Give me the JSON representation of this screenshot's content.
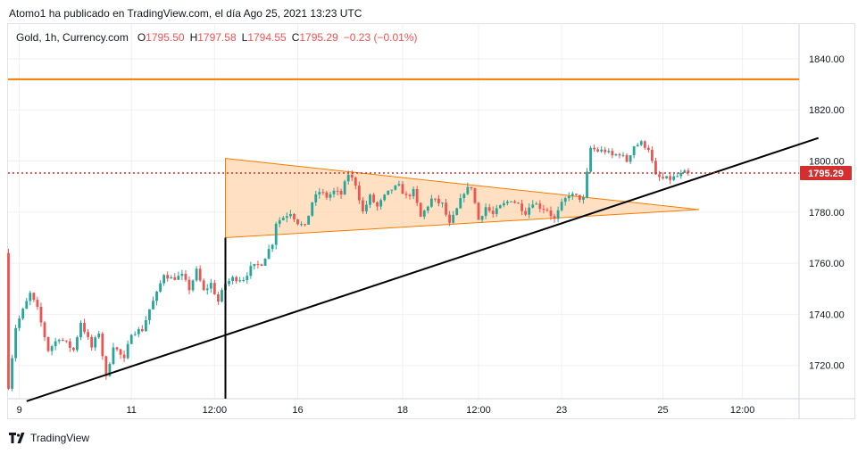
{
  "published_line": "Atomo1 ha publicado en TradingView.com, el día Ago 25, 2021 13:23 UTC",
  "legend": {
    "symbol": "Gold, 1h, Currency.com",
    "open_label": "O",
    "open": "1795.50",
    "high_label": "H",
    "high": "1797.58",
    "low_label": "L",
    "low": "1794.55",
    "close_label": "C",
    "close": "1795.29",
    "change": "−0.23 (−0.01%)"
  },
  "brand": "TradingView",
  "colors": {
    "up": "#26a69a",
    "down": "#ef5350",
    "resistance": "#f57c00",
    "triangle_fill": "#ffcc99",
    "triangle_stroke": "#f57c00",
    "trendline": "#000000",
    "price_line": "#d32f2f",
    "grid": "#eef0f3"
  },
  "chart_data": {
    "type": "candlestick",
    "instrument": "Gold",
    "timeframe": "1h",
    "y_axis": {
      "ticks": [
        1720,
        1740,
        1760,
        1780,
        1800,
        1820,
        1840
      ],
      "tick_labels": [
        "1720.00",
        "1740.00",
        "1760.00",
        "1780.00",
        "1800.00",
        "1820.00",
        "1840.00"
      ],
      "range": [
        1705,
        1850
      ]
    },
    "x_axis": {
      "tick_labels": [
        "9",
        "11",
        "12:00",
        "16",
        "18",
        "12:00",
        "23",
        "25",
        "12:00"
      ],
      "tick_bars": [
        3,
        34,
        57,
        80,
        109,
        130,
        153,
        181,
        203
      ]
    },
    "last_price": 1795.29,
    "last_price_label": "1795.29",
    "resistance_level": 1832,
    "price_path": [
      [
        0,
        1764
      ],
      [
        1,
        1712
      ],
      [
        3,
        1735
      ],
      [
        7,
        1748
      ],
      [
        9,
        1742
      ],
      [
        12,
        1726
      ],
      [
        15,
        1731
      ],
      [
        19,
        1726
      ],
      [
        21,
        1737
      ],
      [
        24,
        1727
      ],
      [
        26,
        1733
      ],
      [
        28,
        1715
      ],
      [
        30,
        1728
      ],
      [
        33,
        1722
      ],
      [
        35,
        1733
      ],
      [
        38,
        1734
      ],
      [
        40,
        1742
      ],
      [
        42,
        1748
      ],
      [
        44,
        1756
      ],
      [
        46,
        1754
      ],
      [
        49,
        1755
      ],
      [
        51,
        1750
      ],
      [
        53,
        1757
      ],
      [
        55,
        1749
      ],
      [
        57,
        1752
      ],
      [
        59,
        1745
      ],
      [
        61,
        1752
      ],
      [
        63,
        1754
      ],
      [
        66,
        1754
      ],
      [
        68,
        1758
      ],
      [
        71,
        1760
      ],
      [
        74,
        1768
      ],
      [
        75,
        1776
      ],
      [
        77,
        1778
      ],
      [
        79,
        1780
      ],
      [
        81,
        1776
      ],
      [
        83,
        1774
      ],
      [
        85,
        1784
      ],
      [
        87,
        1788
      ],
      [
        89,
        1786
      ],
      [
        91,
        1788
      ],
      [
        93,
        1787
      ],
      [
        95,
        1795
      ],
      [
        97,
        1791
      ],
      [
        99,
        1780
      ],
      [
        101,
        1786
      ],
      [
        103,
        1782
      ],
      [
        105,
        1786
      ],
      [
        107,
        1789
      ],
      [
        109,
        1790
      ],
      [
        111,
        1786
      ],
      [
        113,
        1788
      ],
      [
        115,
        1778
      ],
      [
        118,
        1785
      ],
      [
        121,
        1783
      ],
      [
        123,
        1775
      ],
      [
        125,
        1781
      ],
      [
        127,
        1788
      ],
      [
        129,
        1790
      ],
      [
        131,
        1777
      ],
      [
        133,
        1782
      ],
      [
        135,
        1779
      ],
      [
        137,
        1782
      ],
      [
        140,
        1785
      ],
      [
        142,
        1783
      ],
      [
        144,
        1780
      ],
      [
        146,
        1784
      ],
      [
        148,
        1782
      ],
      [
        150,
        1781
      ],
      [
        152,
        1777
      ],
      [
        154,
        1783
      ],
      [
        156,
        1787
      ],
      [
        158,
        1786
      ],
      [
        160,
        1785
      ],
      [
        161,
        1795
      ],
      [
        162,
        1805
      ],
      [
        164,
        1804
      ],
      [
        166,
        1804
      ],
      [
        168,
        1802
      ],
      [
        170,
        1803
      ],
      [
        172,
        1800
      ],
      [
        174,
        1806
      ],
      [
        176,
        1807
      ],
      [
        178,
        1805
      ],
      [
        180,
        1794
      ],
      [
        182,
        1793
      ],
      [
        184,
        1793
      ],
      [
        186,
        1794
      ],
      [
        188,
        1795.29
      ]
    ],
    "annotations": [
      {
        "type": "horizontal_line",
        "price": 1832,
        "color": "resistance"
      },
      {
        "type": "triangle",
        "points": [
          [
            60,
            1801
          ],
          [
            60,
            1770
          ],
          [
            191,
            1781
          ]
        ]
      },
      {
        "type": "trendline",
        "from": [
          5,
          1706
        ],
        "to": [
          224,
          1809
        ]
      },
      {
        "type": "vertical_line",
        "bar": 60,
        "from_price": 1770,
        "to_price": 1702
      },
      {
        "type": "price_line",
        "price": 1795.29,
        "style": "dotted"
      }
    ]
  }
}
